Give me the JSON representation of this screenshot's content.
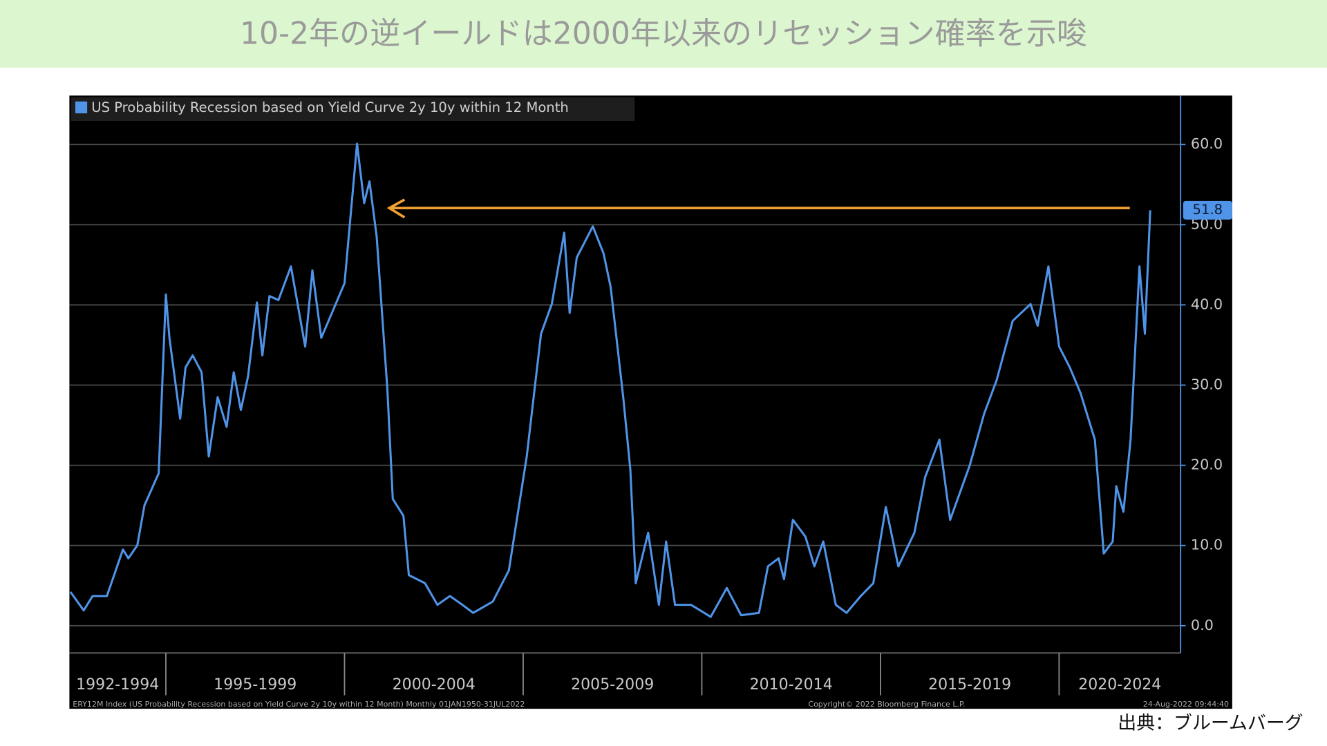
{
  "header": {
    "title": "10-2年の逆イールドは2000年以来のリセッション確率を示唆"
  },
  "chart_data": {
    "type": "line",
    "legend_text": "US Probability Recession based on Yield Curve 2y 10y within 12 Month",
    "x": [
      1992.33,
      1992.7,
      1992.95,
      1993.35,
      1993.8,
      1993.95,
      1994.2,
      1994.4,
      1994.8,
      1995.0,
      1995.1,
      1995.4,
      1995.55,
      1995.75,
      1996.0,
      1996.2,
      1996.45,
      1996.7,
      1996.9,
      1997.1,
      1997.3,
      1997.55,
      1997.7,
      1997.9,
      1998.15,
      1998.5,
      1998.9,
      1999.1,
      1999.35,
      1999.6,
      2000.0,
      2000.35,
      2000.55,
      2000.7,
      2000.9,
      2001.2,
      2001.35,
      2001.65,
      2001.8,
      2002.25,
      2002.6,
      2002.95,
      2003.3,
      2003.6,
      2004.15,
      2004.6,
      2005.1,
      2005.5,
      2005.8,
      2006.15,
      2006.3,
      2006.5,
      2006.95,
      2007.25,
      2007.45,
      2007.8,
      2008.0,
      2008.15,
      2008.5,
      2008.8,
      2009.0,
      2009.25,
      2009.7,
      2010.25,
      2010.7,
      2011.1,
      2011.6,
      2011.85,
      2012.15,
      2012.3,
      2012.55,
      2012.9,
      2013.15,
      2013.4,
      2013.75,
      2014.05,
      2014.45,
      2014.8,
      2015.15,
      2015.5,
      2015.95,
      2016.25,
      2016.65,
      2016.95,
      2017.5,
      2017.9,
      2018.25,
      2018.7,
      2019.2,
      2019.4,
      2019.7,
      2020.0,
      2020.3,
      2020.6,
      2021.0,
      2021.25,
      2021.5,
      2021.6,
      2021.8,
      2022.0,
      2022.25,
      2022.4,
      2022.55
    ],
    "series": [
      {
        "name": "US Probability Recession based on Yield Curve 2y 10y within 12 Month",
        "color": "#4f94e8",
        "values": [
          4.2,
          1.9,
          3.7,
          3.7,
          9.5,
          8.4,
          10,
          15,
          19,
          41.3,
          35.9,
          25.8,
          32.2,
          33.7,
          31.6,
          21.1,
          28.5,
          24.8,
          31.6,
          26.9,
          31.1,
          40.3,
          33.7,
          41.1,
          40.6,
          44.8,
          34.8,
          44.3,
          35.9,
          38.5,
          42.7,
          60.1,
          52.7,
          55.4,
          48.5,
          29.5,
          15.8,
          13.7,
          6.3,
          5.3,
          2.6,
          3.7,
          2.6,
          1.6,
          3.0,
          6.9,
          21.1,
          36.4,
          40.1,
          49.0,
          39.0,
          45.9,
          49.8,
          46.4,
          42.2,
          28.5,
          19.5,
          5.3,
          11.6,
          2.6,
          10.5,
          2.6,
          2.6,
          1.1,
          4.7,
          1.3,
          1.6,
          7.4,
          8.4,
          5.8,
          13.2,
          11.1,
          7.4,
          10.5,
          2.6,
          1.6,
          3.7,
          5.3,
          14.8,
          7.4,
          11.6,
          18.5,
          23.2,
          13.2,
          20.0,
          26.4,
          30.6,
          38.0,
          40.1,
          37.4,
          44.8,
          34.8,
          32.2,
          29.0,
          23.2,
          9.0,
          10.5,
          17.4,
          14.2,
          23.2,
          44.8,
          36.4,
          51.8
        ]
      }
    ],
    "xlim": [
      1992.3,
      2023.4
    ],
    "xticks": [
      1995,
      2000,
      2005,
      2010,
      2015,
      2020
    ],
    "period_labels": [
      "1992-1994",
      "1995-1999",
      "2000-2004",
      "2005-2009",
      "2010-2014",
      "2015-2019",
      "2020-2024"
    ],
    "ylim": [
      -3.4,
      66.1
    ],
    "yticks": [
      {
        "value": 0,
        "label": "0.0"
      },
      {
        "value": 10,
        "label": "10.0"
      },
      {
        "value": 20,
        "label": "20.0"
      },
      {
        "value": 30,
        "label": "30.0"
      },
      {
        "value": 40,
        "label": "40.0"
      },
      {
        "value": 50,
        "label": "50.0"
      },
      {
        "value": 60,
        "label": "60.0"
      }
    ],
    "grid": true,
    "footer_left": "ERY12M Index (US Probability Recession based on Yield Curve 2y 10y within 12 Month) Monthly 01JAN1950-31JUL2022",
    "footer_center": "Copyright© 2022 Bloomberg Finance L.P.",
    "footer_right": "24-Aug-2022 09:44:40"
  },
  "source": "出典：ブルームバーグ"
}
